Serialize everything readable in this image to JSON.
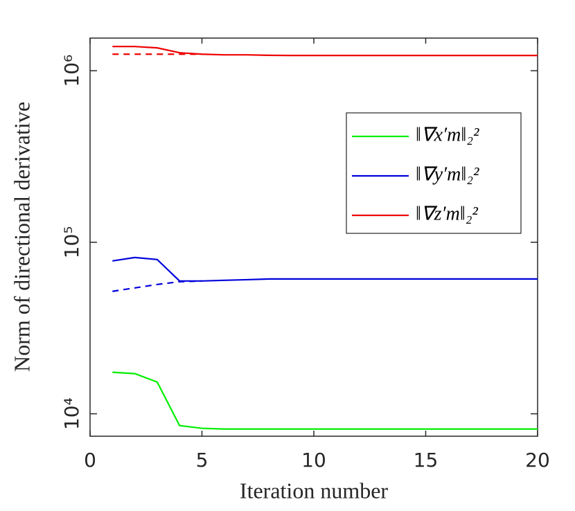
{
  "chart_data": {
    "type": "line",
    "xlabel": "Iteration number",
    "ylabel": "Norm of directional derivative",
    "x": [
      1,
      2,
      3,
      4,
      5,
      6,
      7,
      8,
      9,
      10,
      11,
      12,
      13,
      14,
      15,
      16,
      17,
      18,
      19,
      20
    ],
    "series": [
      {
        "name": "‖∇x′m‖₂²",
        "color": "#00ee00",
        "values": [
          17460,
          17140,
          15320,
          8540,
          8230,
          8150,
          8150,
          8150,
          8150,
          8150,
          8150,
          8150,
          8150,
          8150,
          8150,
          8150,
          8150,
          8150,
          8150,
          8150
        ]
      },
      {
        "name": "‖∇y′m‖₂²",
        "color": "#0000dd",
        "values": [
          77830,
          81500,
          79300,
          59450,
          59450,
          60000,
          60500,
          61100,
          61100,
          61100,
          61100,
          61100,
          61100,
          61100,
          61100,
          61100,
          61100,
          61100,
          61100,
          61100
        ],
        "dashed_values": [
          51750,
          54180,
          56750,
          58880,
          59450,
          null,
          null,
          null,
          null,
          null,
          null,
          null,
          null,
          null,
          null,
          null,
          null,
          null,
          null,
          null
        ]
      },
      {
        "name": "‖∇z′m‖₂²",
        "color": "#ee0000",
        "values": [
          1384000,
          1384000,
          1359000,
          1273000,
          1249000,
          1238000,
          1238000,
          1230000,
          1227000,
          1227000,
          1227000,
          1227000,
          1227000,
          1227000,
          1227000,
          1227000,
          1227000,
          1227000,
          1227000,
          1227000
        ],
        "dashed_values": [
          1249000,
          1249000,
          1249000,
          1249000,
          1249000,
          null,
          null,
          null,
          null,
          null,
          null,
          null,
          null,
          null,
          null,
          null,
          null,
          null,
          null,
          null
        ]
      }
    ],
    "xlim": [
      0,
      20
    ],
    "xticks": [
      0,
      5,
      10,
      15,
      20
    ],
    "ylim": [
      7400,
      1550000
    ],
    "log_y": true,
    "yticks": [
      {
        "value": 10000,
        "label": "10⁴"
      },
      {
        "value": 100000,
        "label": "10⁵"
      },
      {
        "value": 1000000,
        "label": "10⁶"
      }
    ],
    "legend": "upper right"
  }
}
